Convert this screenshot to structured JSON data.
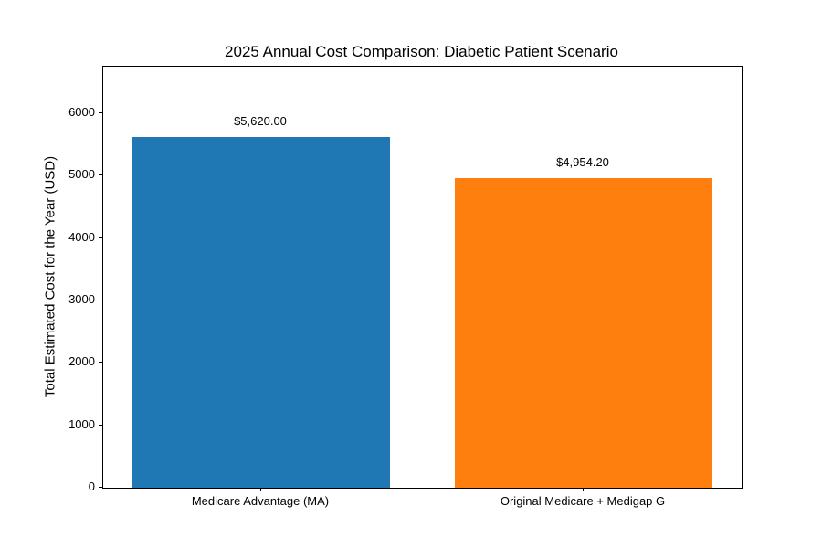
{
  "figure": {
    "background_color": "#ffffff",
    "text_color": "#000000",
    "spine_color": "#000000"
  },
  "chart_data": {
    "type": "bar",
    "title": "2025 Annual Cost Comparison: Diabetic Patient Scenario",
    "xlabel": "",
    "ylabel": "Total Estimated Cost for the Year (USD)",
    "categories": [
      "Medicare Advantage (MA)",
      "Original Medicare + Medigap G"
    ],
    "values": [
      5620.0,
      4954.2
    ],
    "value_labels": [
      "$5,620.00",
      "$4,954.20"
    ],
    "bar_colors": [
      "#1f77b4",
      "#ff7f0e"
    ],
    "yticks": [
      0,
      1000,
      2000,
      3000,
      4000,
      5000,
      6000
    ],
    "ylim": [
      0,
      6744
    ],
    "grid": false,
    "legend": "none",
    "bar_width_fraction": 0.8
  }
}
